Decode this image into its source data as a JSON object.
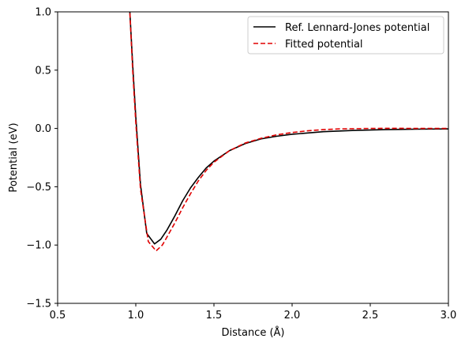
{
  "chart_data": {
    "type": "line",
    "title": "",
    "xlabel": "Distance (Å)",
    "ylabel": "Potential (eV)",
    "xlim": [
      0.5,
      3.0
    ],
    "ylim": [
      -1.5,
      1.0
    ],
    "xticks": [
      0.5,
      1.0,
      1.5,
      2.0,
      2.5,
      3.0
    ],
    "xtick_labels": [
      "0.5",
      "1.0",
      "1.5",
      "2.0",
      "2.5",
      "3.0"
    ],
    "yticks": [
      -1.5,
      -1.0,
      -0.5,
      0.0,
      0.5,
      1.0
    ],
    "ytick_labels": [
      "−1.5",
      "−1.0",
      "−0.5",
      "0.0",
      "0.5",
      "1.0"
    ],
    "grid": false,
    "legend_position": "top-right",
    "series": [
      {
        "name": "Ref. Lennard-Jones potential",
        "color": "#000000",
        "style": "solid",
        "x": [
          0.96,
          0.98,
          1.0,
          1.03,
          1.07,
          1.12,
          1.16,
          1.2,
          1.25,
          1.3,
          1.35,
          1.4,
          1.45,
          1.5,
          1.6,
          1.7,
          1.8,
          1.9,
          2.0,
          2.2,
          2.4,
          2.6,
          2.8,
          3.0
        ],
        "y": [
          1.05,
          0.55,
          0.1,
          -0.48,
          -0.9,
          -0.99,
          -0.95,
          -0.87,
          -0.75,
          -0.62,
          -0.51,
          -0.42,
          -0.34,
          -0.28,
          -0.19,
          -0.13,
          -0.09,
          -0.067,
          -0.05,
          -0.028,
          -0.017,
          -0.01,
          -0.006,
          -0.004
        ]
      },
      {
        "name": "Fitted potential",
        "color": "#e00000",
        "style": "dashed",
        "x": [
          0.96,
          0.98,
          1.0,
          1.03,
          1.08,
          1.13,
          1.17,
          1.2,
          1.25,
          1.3,
          1.35,
          1.4,
          1.45,
          1.5,
          1.6,
          1.7,
          1.8,
          1.9,
          2.0,
          2.1,
          2.2,
          2.3,
          2.4,
          2.5,
          2.6,
          2.7,
          2.8,
          3.0
        ],
        "y": [
          1.05,
          0.5,
          0.05,
          -0.52,
          -0.97,
          -1.05,
          -1.0,
          -0.93,
          -0.81,
          -0.68,
          -0.56,
          -0.45,
          -0.36,
          -0.29,
          -0.19,
          -0.125,
          -0.085,
          -0.055,
          -0.035,
          -0.02,
          -0.01,
          -0.004,
          -0.002,
          0.0,
          0.001,
          0.001,
          0.0,
          0.0
        ]
      }
    ]
  }
}
